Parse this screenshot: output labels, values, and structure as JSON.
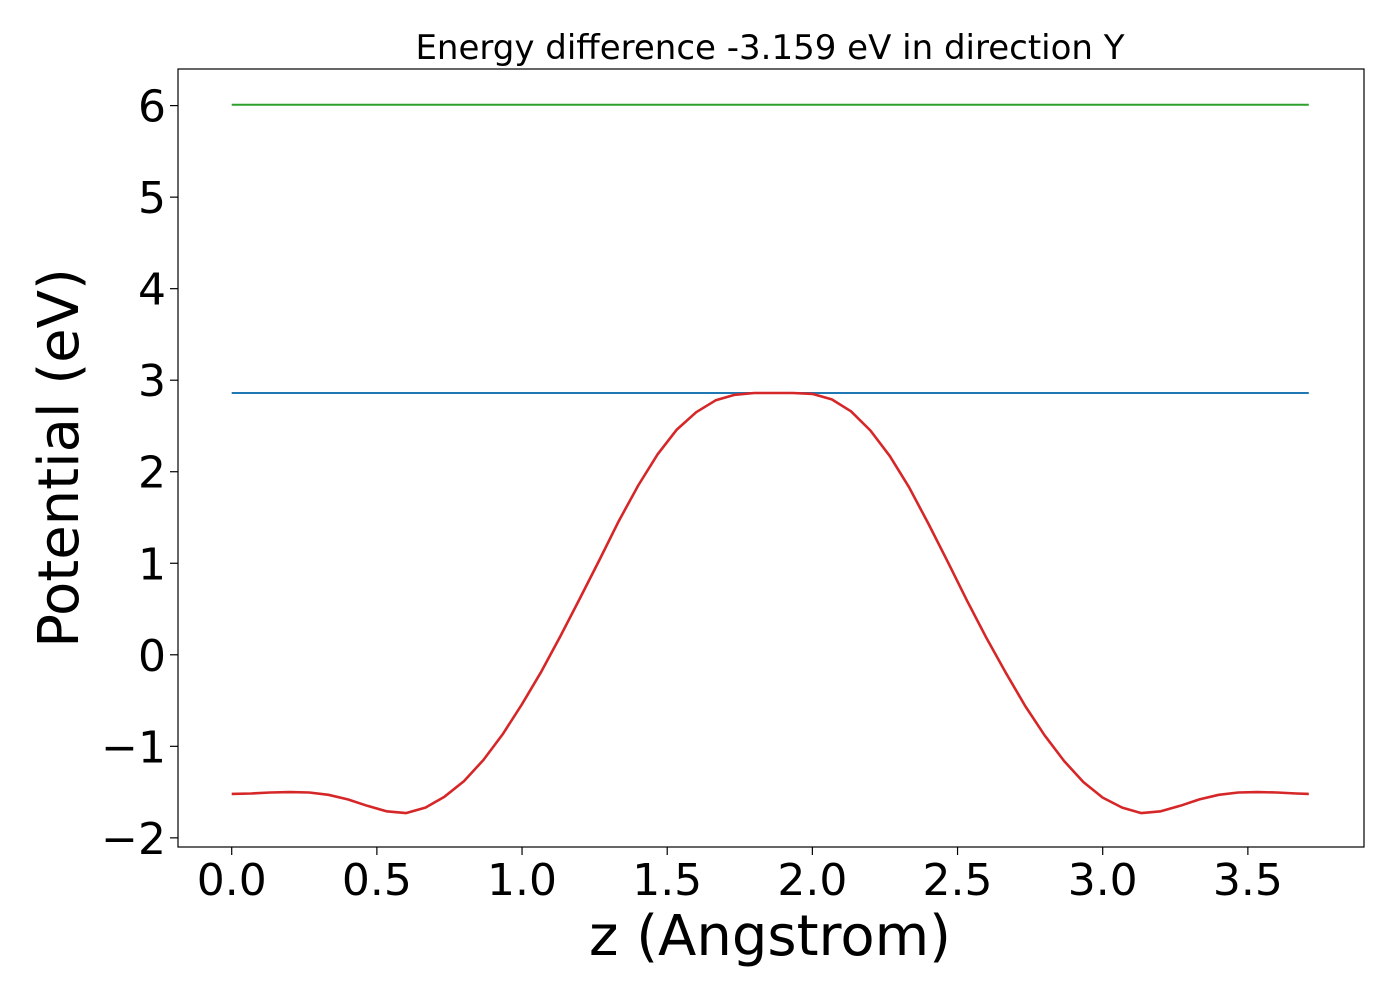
{
  "chart_data": {
    "type": "line",
    "title": "Energy difference -3.159 eV in direction Y",
    "xlabel": "z (Angstrom)",
    "ylabel": "Potential (eV)",
    "xlim": [
      -0.185,
      3.9
    ],
    "ylim": [
      -2.1,
      6.4
    ],
    "x_ticks": [
      0.0,
      0.5,
      1.0,
      1.5,
      2.0,
      2.5,
      3.0,
      3.5
    ],
    "x_tick_labels": [
      "0.0",
      "0.5",
      "1.0",
      "1.5",
      "2.0",
      "2.5",
      "3.0",
      "3.5"
    ],
    "y_ticks": [
      -2,
      -1,
      0,
      1,
      2,
      3,
      4,
      5,
      6
    ],
    "y_tick_labels": [
      "−2",
      "−1",
      "0",
      "1",
      "2",
      "3",
      "4",
      "5",
      "6"
    ],
    "grid": false,
    "series": [
      {
        "color": "#2ca02c",
        "x": [
          0.0,
          3.71
        ],
        "y": [
          6.01,
          6.01
        ]
      },
      {
        "color": "#1f77b4",
        "x": [
          0.0,
          3.71
        ],
        "y": [
          2.86,
          2.86
        ]
      },
      {
        "color": "#d62728",
        "x": [
          0.0,
          0.067,
          0.133,
          0.2,
          0.267,
          0.333,
          0.4,
          0.467,
          0.533,
          0.6,
          0.667,
          0.733,
          0.8,
          0.867,
          0.933,
          1.0,
          1.067,
          1.133,
          1.2,
          1.267,
          1.333,
          1.4,
          1.467,
          1.533,
          1.6,
          1.667,
          1.733,
          1.8,
          1.867,
          1.933,
          2.0,
          2.067,
          2.133,
          2.2,
          2.267,
          2.333,
          2.4,
          2.467,
          2.533,
          2.6,
          2.667,
          2.733,
          2.8,
          2.867,
          2.933,
          3.0,
          3.067,
          3.133,
          3.2,
          3.267,
          3.333,
          3.4,
          3.467,
          3.533,
          3.6,
          3.667,
          3.71
        ],
        "y": [
          -1.52,
          -1.515,
          -1.505,
          -1.5,
          -1.505,
          -1.53,
          -1.58,
          -1.65,
          -1.71,
          -1.73,
          -1.67,
          -1.55,
          -1.38,
          -1.15,
          -0.87,
          -0.54,
          -0.18,
          0.21,
          0.62,
          1.04,
          1.46,
          1.85,
          2.19,
          2.46,
          2.65,
          2.78,
          2.84,
          2.86,
          2.86,
          2.86,
          2.85,
          2.79,
          2.66,
          2.45,
          2.17,
          1.83,
          1.43,
          1.01,
          0.59,
          0.18,
          -0.2,
          -0.56,
          -0.88,
          -1.16,
          -1.39,
          -1.56,
          -1.67,
          -1.73,
          -1.71,
          -1.65,
          -1.58,
          -1.53,
          -1.505,
          -1.5,
          -1.505,
          -1.515,
          -1.52
        ]
      }
    ]
  }
}
